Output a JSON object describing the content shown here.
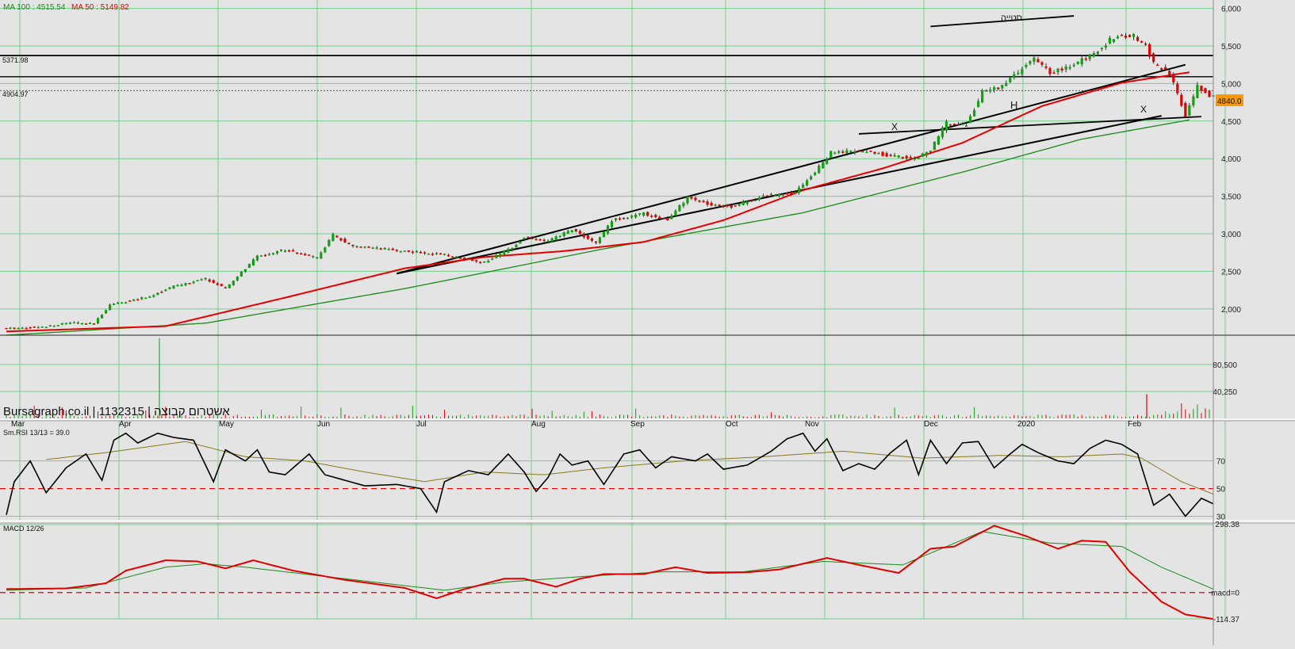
{
  "legend": {
    "ma100_label": "MA 100 : 4515.54",
    "ma100_color": "#1a8a1a",
    "ma50_label": "MA 50 : 5149.82",
    "ma50_color": "#e60000"
  },
  "watermark": "Bursagraph.co.il | 1132315 | אשטרום קבוצה",
  "price": {
    "yticks": [
      "2,000",
      "2,500",
      "3,000",
      "3,500",
      "4,000",
      "4,500",
      "5,000",
      "5,500",
      "6,000"
    ],
    "last_price_tag": "4840.0",
    "hline_upper_label": "5371.98",
    "hline_lower_label": "4904.97",
    "annotations": {
      "resistance": "סטייה",
      "head": "H",
      "shoulder_left": "X",
      "shoulder_right": "X"
    },
    "up_color": "#10a010",
    "down_color": "#e00000"
  },
  "volume": {
    "yticks": [
      "80,500",
      "40,250"
    ]
  },
  "months": [
    "Mar",
    "Apr",
    "May",
    "Jun",
    "Jul",
    "Aug",
    "Sep",
    "Oct",
    "Nov",
    "Dec",
    "2020",
    "Feb"
  ],
  "rsi": {
    "label": "Sm.RSI 13/13 = 39.0",
    "yticks": [
      "70",
      "50",
      "30"
    ]
  },
  "macd": {
    "label": "MACD 12/26",
    "yticks": [
      "298.38",
      "macd=0",
      "-114.37"
    ]
  },
  "chart_data": [
    {
      "type": "candlestick",
      "title": "",
      "ylim": [
        1650,
        6080
      ],
      "anchors_close": [
        [
          0,
          1740
        ],
        [
          9,
          1760
        ],
        [
          16,
          1820
        ],
        [
          22,
          1800
        ],
        [
          26,
          2060
        ],
        [
          35,
          2150
        ],
        [
          42,
          2300
        ],
        [
          50,
          2400
        ],
        [
          55,
          2270
        ],
        [
          63,
          2700
        ],
        [
          70,
          2790
        ],
        [
          78,
          2680
        ],
        [
          82,
          2980
        ],
        [
          87,
          2830
        ],
        [
          100,
          2770
        ],
        [
          110,
          2720
        ],
        [
          120,
          2620
        ],
        [
          126,
          2790
        ],
        [
          130,
          2950
        ],
        [
          136,
          2900
        ],
        [
          142,
          3060
        ],
        [
          148,
          2870
        ],
        [
          152,
          3180
        ],
        [
          160,
          3270
        ],
        [
          166,
          3180
        ],
        [
          171,
          3480
        ],
        [
          176,
          3400
        ],
        [
          182,
          3360
        ],
        [
          190,
          3500
        ],
        [
          198,
          3560
        ],
        [
          203,
          3820
        ],
        [
          207,
          4080
        ],
        [
          215,
          4100
        ],
        [
          222,
          4040
        ],
        [
          228,
          4000
        ],
        [
          232,
          4120
        ],
        [
          236,
          4480
        ],
        [
          241,
          4450
        ],
        [
          245,
          4880
        ],
        [
          250,
          4970
        ],
        [
          255,
          5200
        ],
        [
          258,
          5320
        ],
        [
          262,
          5150
        ],
        [
          266,
          5200
        ],
        [
          272,
          5370
        ],
        [
          278,
          5620
        ],
        [
          283,
          5630
        ],
        [
          286,
          5500
        ],
        [
          288,
          5270
        ],
        [
          292,
          5120
        ],
        [
          296,
          4580
        ],
        [
          299,
          4960
        ],
        [
          302,
          4840
        ]
      ],
      "ma50_anchors": [
        [
          0,
          1700
        ],
        [
          40,
          1770
        ],
        [
          70,
          2150
        ],
        [
          100,
          2540
        ],
        [
          120,
          2690
        ],
        [
          140,
          2770
        ],
        [
          160,
          2890
        ],
        [
          180,
          3180
        ],
        [
          200,
          3580
        ],
        [
          220,
          3870
        ],
        [
          240,
          4210
        ],
        [
          260,
          4700
        ],
        [
          280,
          5010
        ],
        [
          297,
          5149.82
        ]
      ],
      "ma100_anchors": [
        [
          0,
          1650
        ],
        [
          50,
          1810
        ],
        [
          100,
          2270
        ],
        [
          150,
          2800
        ],
        [
          200,
          3280
        ],
        [
          240,
          3820
        ],
        [
          270,
          4260
        ],
        [
          297,
          4515.54
        ]
      ]
    },
    {
      "type": "bar",
      "title": "",
      "ylim": [
        0,
        120750
      ],
      "spike_volume": 120000
    },
    {
      "type": "line",
      "title": "",
      "ylim": [
        28,
        95
      ],
      "reference_line": 50,
      "anchors": [
        [
          0,
          31
        ],
        [
          2,
          55
        ],
        [
          6,
          70
        ],
        [
          10,
          47
        ],
        [
          15,
          65
        ],
        [
          20,
          75
        ],
        [
          24,
          56
        ],
        [
          27,
          85
        ],
        [
          30,
          90
        ],
        [
          33,
          83
        ],
        [
          38,
          90
        ],
        [
          42,
          87
        ],
        [
          47,
          85
        ],
        [
          52,
          55
        ],
        [
          55,
          78
        ],
        [
          60,
          70
        ],
        [
          63,
          78
        ],
        [
          66,
          62
        ],
        [
          70,
          60
        ],
        [
          76,
          75
        ],
        [
          80,
          60
        ],
        [
          85,
          56
        ],
        [
          90,
          52
        ],
        [
          98,
          53
        ],
        [
          104,
          50
        ],
        [
          108,
          33
        ],
        [
          110,
          55
        ],
        [
          116,
          63
        ],
        [
          121,
          60
        ],
        [
          126,
          75
        ],
        [
          130,
          62
        ],
        [
          133,
          48
        ],
        [
          136,
          58
        ],
        [
          139,
          75
        ],
        [
          142,
          67
        ],
        [
          146,
          70
        ],
        [
          150,
          53
        ],
        [
          155,
          75
        ],
        [
          159,
          78
        ],
        [
          163,
          65
        ],
        [
          167,
          73
        ],
        [
          173,
          70
        ],
        [
          176,
          75
        ],
        [
          180,
          64
        ],
        [
          186,
          67
        ],
        [
          192,
          77
        ],
        [
          196,
          86
        ],
        [
          200,
          90
        ],
        [
          203,
          77
        ],
        [
          206,
          86
        ],
        [
          210,
          63
        ],
        [
          214,
          68
        ],
        [
          218,
          64
        ],
        [
          222,
          76
        ],
        [
          226,
          85
        ],
        [
          229,
          60
        ],
        [
          232,
          85
        ],
        [
          236,
          68
        ],
        [
          240,
          83
        ],
        [
          244,
          84
        ],
        [
          248,
          65
        ],
        [
          252,
          75
        ],
        [
          255,
          82
        ],
        [
          259,
          76
        ],
        [
          264,
          70
        ],
        [
          268,
          68
        ],
        [
          272,
          79
        ],
        [
          276,
          85
        ],
        [
          280,
          82
        ],
        [
          284,
          75
        ],
        [
          288,
          38
        ],
        [
          292,
          46
        ],
        [
          296,
          30
        ],
        [
          300,
          43
        ],
        [
          303,
          39
        ]
      ],
      "signal_anchors": [
        [
          10,
          71
        ],
        [
          25,
          76
        ],
        [
          45,
          84
        ],
        [
          60,
          73
        ],
        [
          75,
          70
        ],
        [
          90,
          62
        ],
        [
          105,
          55
        ],
        [
          120,
          62
        ],
        [
          135,
          60
        ],
        [
          150,
          65
        ],
        [
          170,
          70
        ],
        [
          190,
          73
        ],
        [
          210,
          77
        ],
        [
          230,
          72
        ],
        [
          250,
          74
        ],
        [
          265,
          73
        ],
        [
          280,
          75
        ],
        [
          285,
          72
        ],
        [
          295,
          55
        ],
        [
          303,
          46
        ]
      ]
    },
    {
      "type": "line",
      "title": "",
      "ylim": [
        -114.37,
        298.38
      ],
      "reference_line": 0,
      "anchors": [
        [
          0,
          15
        ],
        [
          15,
          18
        ],
        [
          25,
          40
        ],
        [
          30,
          95
        ],
        [
          40,
          140
        ],
        [
          48,
          135
        ],
        [
          55,
          105
        ],
        [
          62,
          140
        ],
        [
          72,
          95
        ],
        [
          85,
          55
        ],
        [
          100,
          20
        ],
        [
          108,
          -25
        ],
        [
          115,
          15
        ],
        [
          125,
          60
        ],
        [
          130,
          60
        ],
        [
          138,
          25
        ],
        [
          144,
          60
        ],
        [
          150,
          80
        ],
        [
          160,
          80
        ],
        [
          168,
          110
        ],
        [
          176,
          85
        ],
        [
          186,
          88
        ],
        [
          194,
          100
        ],
        [
          206,
          150
        ],
        [
          214,
          120
        ],
        [
          224,
          85
        ],
        [
          232,
          190
        ],
        [
          238,
          200
        ],
        [
          248,
          290
        ],
        [
          256,
          245
        ],
        [
          264,
          190
        ],
        [
          270,
          225
        ],
        [
          276,
          220
        ],
        [
          282,
          90
        ],
        [
          290,
          -40
        ],
        [
          296,
          -95
        ],
        [
          303,
          -115
        ]
      ],
      "signal_anchors": [
        [
          0,
          10
        ],
        [
          20,
          20
        ],
        [
          40,
          110
        ],
        [
          50,
          125
        ],
        [
          60,
          110
        ],
        [
          75,
          80
        ],
        [
          95,
          40
        ],
        [
          110,
          10
        ],
        [
          125,
          45
        ],
        [
          145,
          70
        ],
        [
          165,
          90
        ],
        [
          185,
          90
        ],
        [
          205,
          135
        ],
        [
          225,
          120
        ],
        [
          245,
          265
        ],
        [
          262,
          215
        ],
        [
          280,
          200
        ],
        [
          290,
          110
        ],
        [
          303,
          15
        ]
      ]
    }
  ]
}
